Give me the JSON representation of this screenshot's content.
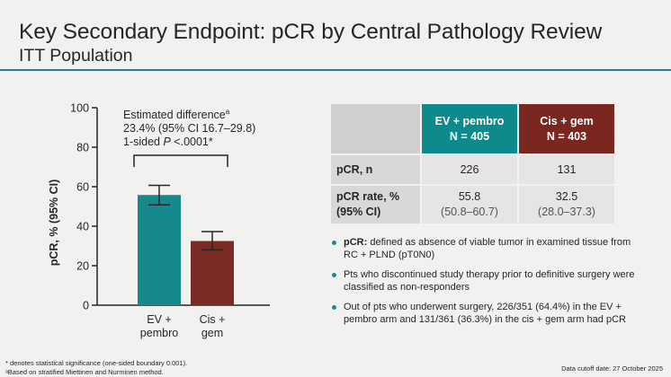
{
  "slide": {
    "title": "Key Secondary Endpoint: pCR by Central Pathology Review",
    "subtitle": "ITT Population"
  },
  "chart_data": {
    "type": "bar",
    "title": "",
    "xlabel": "",
    "ylabel": "pCR, % (95% CI)",
    "ylim": [
      0,
      100
    ],
    "yticks": [
      0,
      20,
      40,
      60,
      80,
      100
    ],
    "categories": [
      {
        "line1": "EV +",
        "line2": "pembro"
      },
      {
        "line1": "Cis +",
        "line2": "gem"
      }
    ],
    "series": [
      {
        "name": "pCR rate",
        "values": [
          55.8,
          32.5
        ],
        "ci_low": [
          50.8,
          28.0
        ],
        "ci_high": [
          60.7,
          37.3
        ],
        "colors": [
          "#15898b",
          "#7c2b22"
        ]
      }
    ],
    "annotation": {
      "line1": "Estimated difference",
      "line1_sup": "a",
      "line2": "23.4% (95% CI 16.7–29.8)",
      "line3_prefix": "1-sided ",
      "line3_p": "P",
      "line3_suffix": " <.0001*"
    }
  },
  "table": {
    "col1": {
      "name": "EV + pembro",
      "n": "N = 405"
    },
    "col2": {
      "name": "Cis + gem",
      "n": "N = 403"
    },
    "row1": {
      "label": "pCR, n",
      "v1": "226",
      "v2": "131"
    },
    "row2": {
      "label1": "pCR rate, %",
      "label2": "(95% CI)",
      "v1": "55.8",
      "v1ci": "(50.8–60.7)",
      "v2": "32.5",
      "v2ci": "(28.0–37.3)"
    }
  },
  "notes": {
    "n1_bold": "pCR:",
    "n1_text": " defined as absence of viable tumor in examined tissue from RC + PLND (pT0N0)",
    "n2": "Pts who discontinued study therapy prior to definitive surgery were classified as non-responders",
    "n3": "Out of pts who underwent surgery, 226/351 (64.4%) in the EV + pembro arm and 131/361 (36.3%) in the cis + gem arm had pCR"
  },
  "footnotes": {
    "f1": "* denotes statistical significance (one-sided boundary 0.001).",
    "f2": "ᵃBased on stratified Miettinen and Nurminen method.",
    "cutoff": "Data cutoff date: 27 October 2025"
  }
}
